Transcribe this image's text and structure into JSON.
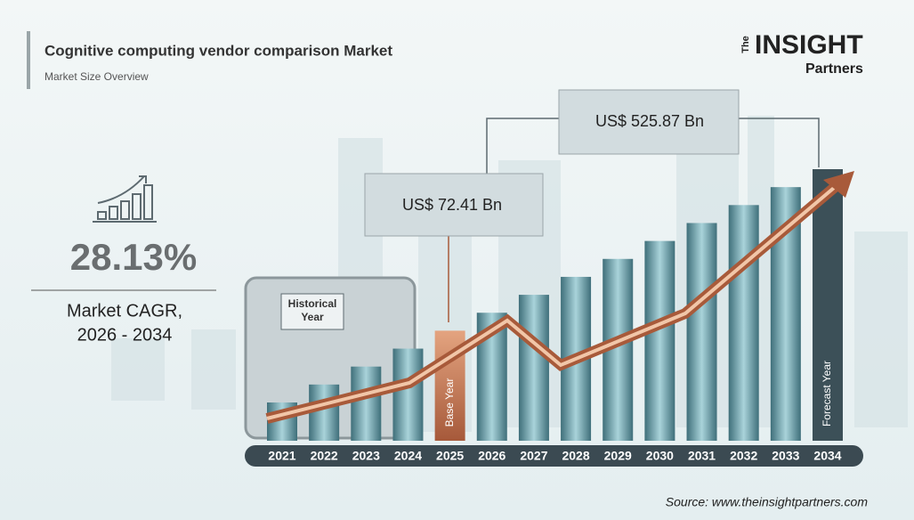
{
  "header": {
    "title": "Cognitive computing vendor comparison Market",
    "subtitle": "Market Size Overview"
  },
  "logo": {
    "prefix": "The",
    "brand": "INSIGHT",
    "suffix": "Partners"
  },
  "cagr": {
    "value": "28.13%",
    "label_line1": "Market CAGR,",
    "label_line2": "2026 - 2034"
  },
  "timeline": {
    "years": [
      "2021",
      "2022",
      "2023",
      "2024",
      "2025",
      "2026",
      "2027",
      "2028",
      "2029",
      "2030",
      "2031",
      "2032",
      "2033",
      "2034"
    ],
    "historical_label": "Historical Year",
    "base_label": "Base Year",
    "forecast_label": "Forecast Year"
  },
  "callouts": [
    "US$ 72.41 Bn",
    "US$ 525.87 Bn"
  ],
  "source": "Source: www.theinsightpartners.com"
}
